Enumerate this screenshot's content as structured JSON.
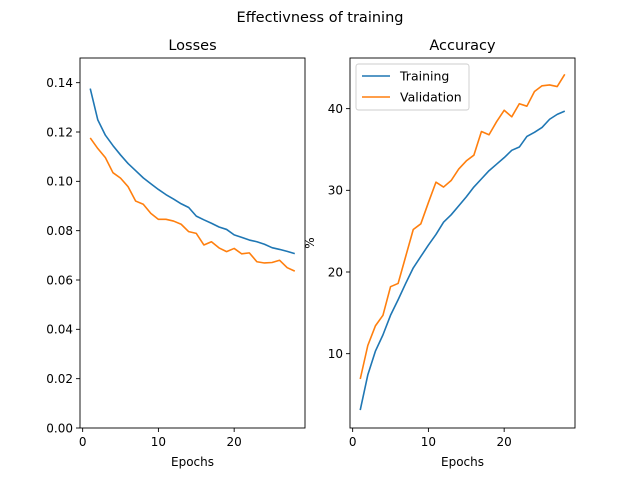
{
  "figure": {
    "suptitle": "Effectivness of training"
  },
  "chart_data": [
    {
      "type": "line",
      "title": "Losses",
      "xlabel": "Epochs",
      "ylabel": "",
      "xlim": [
        -0.35,
        29.35
      ],
      "ylim": [
        0.0,
        0.15
      ],
      "xticks": [
        0,
        10,
        20
      ],
      "yticks": [
        0.0,
        0.02,
        0.04,
        0.06,
        0.08,
        0.1,
        0.12,
        0.14
      ],
      "ytick_labels": [
        "0.00",
        "0.02",
        "0.04",
        "0.06",
        "0.08",
        "0.10",
        "0.12",
        "0.14"
      ],
      "legend": null,
      "series": [
        {
          "color": "#1f77b4",
          "x": [
            1,
            2,
            3,
            4,
            5,
            6,
            7,
            8,
            9,
            10,
            11,
            12,
            13,
            14,
            15,
            16,
            17,
            18,
            19,
            20,
            21,
            22,
            23,
            24,
            25,
            26,
            27,
            28
          ],
          "values": [
            0.1376,
            0.1249,
            0.1187,
            0.1145,
            0.1107,
            0.1072,
            0.1043,
            0.1014,
            0.099,
            0.0967,
            0.0946,
            0.0928,
            0.0909,
            0.0894,
            0.0859,
            0.0844,
            0.083,
            0.0815,
            0.0805,
            0.0783,
            0.0773,
            0.0762,
            0.0755,
            0.0745,
            0.0731,
            0.0724,
            0.0716,
            0.0707
          ]
        },
        {
          "color": "#ff7f0e",
          "x": [
            1,
            2,
            3,
            4,
            5,
            6,
            7,
            8,
            9,
            10,
            11,
            12,
            13,
            14,
            15,
            16,
            17,
            18,
            19,
            20,
            21,
            22,
            23,
            24,
            25,
            26,
            27,
            28
          ],
          "values": [
            0.1176,
            0.1133,
            0.1096,
            0.1035,
            0.1013,
            0.0978,
            0.092,
            0.0907,
            0.087,
            0.0846,
            0.0846,
            0.0839,
            0.0826,
            0.0796,
            0.0789,
            0.0742,
            0.0755,
            0.073,
            0.0715,
            0.0728,
            0.0706,
            0.071,
            0.0674,
            0.0669,
            0.0671,
            0.068,
            0.065,
            0.0636
          ]
        }
      ]
    },
    {
      "type": "line",
      "title": "Accuracy",
      "xlabel": "Epochs",
      "ylabel": "%",
      "xlim": [
        -0.35,
        29.35
      ],
      "ylim": [
        0.9,
        46.2
      ],
      "xticks": [
        0,
        10,
        20
      ],
      "yticks": [
        10,
        20,
        30,
        40
      ],
      "ytick_labels": [
        "10",
        "20",
        "30",
        "40"
      ],
      "legend": "top-left",
      "series": [
        {
          "name": "Training",
          "color": "#1f77b4",
          "x": [
            1,
            2,
            3,
            4,
            5,
            6,
            7,
            8,
            9,
            10,
            11,
            12,
            13,
            14,
            15,
            16,
            17,
            18,
            19,
            20,
            21,
            22,
            23,
            24,
            25,
            26,
            27,
            28
          ],
          "values": [
            3.1,
            7.4,
            10.3,
            12.3,
            14.7,
            16.6,
            18.6,
            20.5,
            21.9,
            23.3,
            24.6,
            26.1,
            27.0,
            28.1,
            29.2,
            30.4,
            31.4,
            32.4,
            33.2,
            34.0,
            34.9,
            35.3,
            36.6,
            37.1,
            37.7,
            38.7,
            39.3,
            39.7
          ]
        },
        {
          "name": "Validation",
          "color": "#ff7f0e",
          "x": [
            1,
            2,
            3,
            4,
            5,
            6,
            7,
            8,
            9,
            10,
            11,
            12,
            13,
            14,
            15,
            16,
            17,
            18,
            19,
            20,
            21,
            22,
            23,
            24,
            25,
            26,
            27,
            28
          ],
          "values": [
            6.9,
            11.0,
            13.4,
            14.7,
            18.2,
            18.6,
            21.9,
            25.2,
            25.9,
            28.5,
            31.0,
            30.4,
            31.2,
            32.6,
            33.6,
            34.3,
            37.2,
            36.8,
            38.4,
            39.8,
            39.0,
            40.6,
            40.3,
            42.1,
            42.8,
            42.9,
            42.7,
            44.2
          ]
        }
      ]
    }
  ]
}
